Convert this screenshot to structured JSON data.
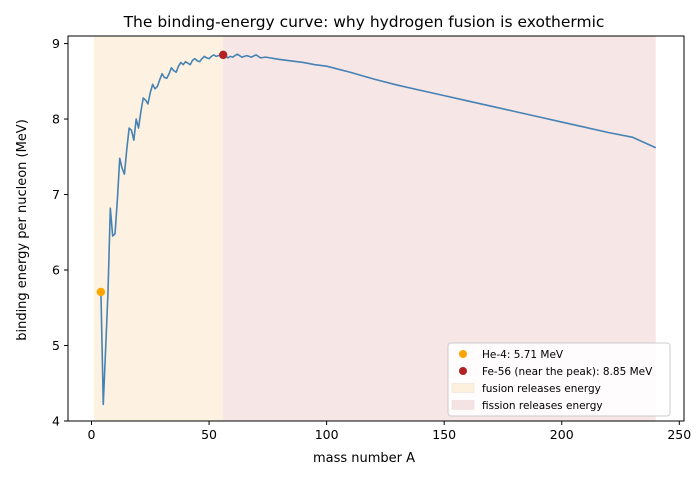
{
  "chart_data": {
    "type": "line",
    "title": "The binding-energy curve: why hydrogen fusion is exothermic",
    "xlabel": "mass number A",
    "ylabel": "binding energy per nucleon (MeV)",
    "xlim": [
      -10,
      252
    ],
    "ylim": [
      4.0,
      9.1
    ],
    "x_ticks": [
      0,
      50,
      100,
      150,
      200,
      250
    ],
    "y_ticks": [
      4,
      5,
      6,
      7,
      8,
      9
    ],
    "grid": false,
    "legend_position": "lower-right",
    "colors": {
      "curve": "#4682b4",
      "he4_marker": "#ffa500",
      "fe56_marker": "#b22222",
      "fusion_region": "#fdf0dd",
      "fission_region": "#f5e3e3"
    },
    "regions": [
      {
        "name": "fusion releases energy",
        "x_range": [
          1,
          56
        ]
      },
      {
        "name": "fission releases energy",
        "x_range": [
          56,
          240
        ]
      }
    ],
    "series": [
      {
        "name": "",
        "x": [
          4,
          5,
          6,
          7,
          8,
          9,
          10,
          11,
          12,
          13,
          14,
          15,
          16,
          17,
          18,
          19,
          20,
          21,
          22,
          23,
          24,
          25,
          26,
          27,
          28,
          29,
          30,
          31,
          32,
          33,
          34,
          35,
          36,
          37,
          38,
          39,
          40,
          41,
          42,
          43,
          44,
          45,
          46,
          47,
          48,
          49,
          50,
          51,
          52,
          53,
          54,
          55,
          56,
          57,
          58,
          59,
          60,
          62,
          64,
          66,
          68,
          70,
          72,
          74,
          76,
          78,
          80,
          85,
          90,
          95,
          100,
          110,
          120,
          130,
          140,
          150,
          160,
          170,
          180,
          190,
          200,
          210,
          220,
          230,
          240
        ],
        "y": [
          5.71,
          4.22,
          4.95,
          5.7,
          6.82,
          6.45,
          6.48,
          6.93,
          7.48,
          7.35,
          7.27,
          7.6,
          7.88,
          7.85,
          7.72,
          8.0,
          7.88,
          8.1,
          8.28,
          8.25,
          8.2,
          8.35,
          8.46,
          8.4,
          8.43,
          8.52,
          8.6,
          8.55,
          8.54,
          8.6,
          8.68,
          8.64,
          8.62,
          8.7,
          8.75,
          8.72,
          8.76,
          8.74,
          8.72,
          8.78,
          8.8,
          8.77,
          8.76,
          8.8,
          8.83,
          8.81,
          8.8,
          8.83,
          8.85,
          8.83,
          8.84,
          8.85,
          8.85,
          8.84,
          8.81,
          8.83,
          8.82,
          8.86,
          8.82,
          8.84,
          8.82,
          8.85,
          8.81,
          8.82,
          8.81,
          8.8,
          8.79,
          8.77,
          8.75,
          8.72,
          8.7,
          8.62,
          8.53,
          8.45,
          8.38,
          8.31,
          8.24,
          8.17,
          8.1,
          8.03,
          7.96,
          7.89,
          7.82,
          7.76,
          7.62
        ]
      }
    ],
    "points": [
      {
        "name": "He-4: 5.71 MeV",
        "x": 4,
        "y": 5.71
      },
      {
        "name": "Fe-56 (near the peak): 8.85 MeV",
        "x": 56,
        "y": 8.85
      }
    ]
  }
}
